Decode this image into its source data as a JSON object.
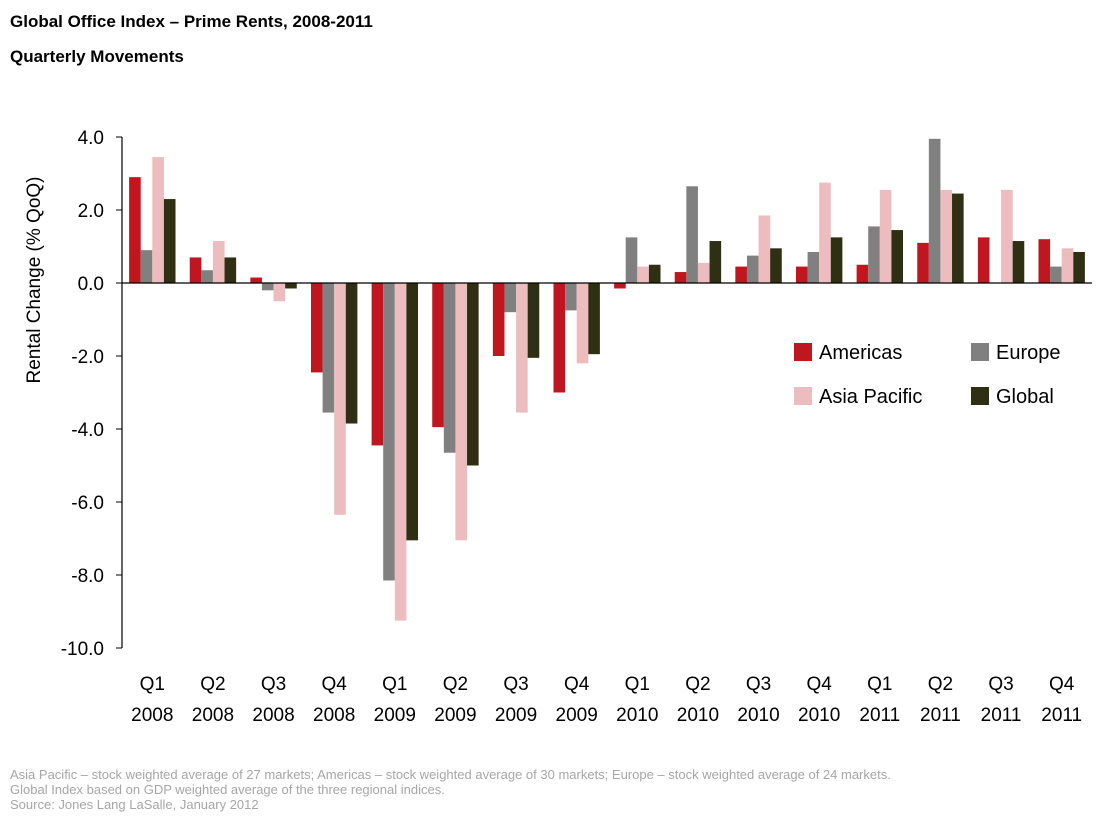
{
  "header": {
    "title": "Global Office Index – Prime Rents, 2008-2011",
    "subtitle": "Quarterly Movements"
  },
  "chart_data": {
    "type": "bar",
    "ylabel": "Rental Change (% QoQ)",
    "ylim": [
      -10,
      4
    ],
    "yticks": [
      "4.0",
      "2.0",
      "0.0",
      "-2.0",
      "-4.0",
      "-6.0",
      "-8.0",
      "-10.0"
    ],
    "ytick_values": [
      4,
      2,
      0,
      -2,
      -4,
      -6,
      -8,
      -10
    ],
    "categories": [
      [
        "Q1",
        "2008"
      ],
      [
        "Q2",
        "2008"
      ],
      [
        "Q3",
        "2008"
      ],
      [
        "Q4",
        "2008"
      ],
      [
        "Q1",
        "2009"
      ],
      [
        "Q2",
        "2009"
      ],
      [
        "Q3",
        "2009"
      ],
      [
        "Q4",
        "2009"
      ],
      [
        "Q1",
        "2010"
      ],
      [
        "Q2",
        "2010"
      ],
      [
        "Q3",
        "2010"
      ],
      [
        "Q4",
        "2010"
      ],
      [
        "Q1",
        "2011"
      ],
      [
        "Q2",
        "2011"
      ],
      [
        "Q3",
        "2011"
      ],
      [
        "Q4",
        "2011"
      ]
    ],
    "series": [
      {
        "name": "Americas",
        "color": "#c0161f",
        "values": [
          2.9,
          0.7,
          0.15,
          -2.45,
          -4.45,
          -3.95,
          -2.0,
          -3.0,
          -0.15,
          0.3,
          0.45,
          0.45,
          0.5,
          1.1,
          1.25,
          1.2
        ]
      },
      {
        "name": "Europe",
        "color": "#808080",
        "values": [
          0.9,
          0.35,
          -0.2,
          -3.55,
          -8.15,
          -4.65,
          -0.8,
          -0.75,
          1.25,
          2.65,
          0.75,
          0.85,
          1.55,
          3.95,
          0.0,
          0.45
        ]
      },
      {
        "name": "Asia Pacific",
        "color": "#ecbcbf",
        "values": [
          3.45,
          1.15,
          -0.5,
          -6.35,
          -9.25,
          -7.05,
          -3.55,
          -2.2,
          0.45,
          0.55,
          1.85,
          2.75,
          2.55,
          2.55,
          2.55,
          0.95
        ]
      },
      {
        "name": "Global",
        "color": "#2f2f14",
        "values": [
          2.3,
          0.7,
          -0.15,
          -3.85,
          -7.05,
          -5.0,
          -2.05,
          -1.95,
          0.5,
          1.15,
          0.95,
          1.25,
          1.45,
          2.45,
          1.15,
          0.85
        ]
      }
    ],
    "legend_position": "right, inside plot below zero line",
    "grid": false
  },
  "notes": {
    "line1": "Asia Pacific – stock weighted average of 27 markets; Americas – stock weighted average of 30 markets; Europe – stock weighted average of 24 markets.",
    "line2": "Global Index based on GDP weighted average of the three regional indices.",
    "line3": "Source: Jones Lang LaSalle, January 2012"
  }
}
